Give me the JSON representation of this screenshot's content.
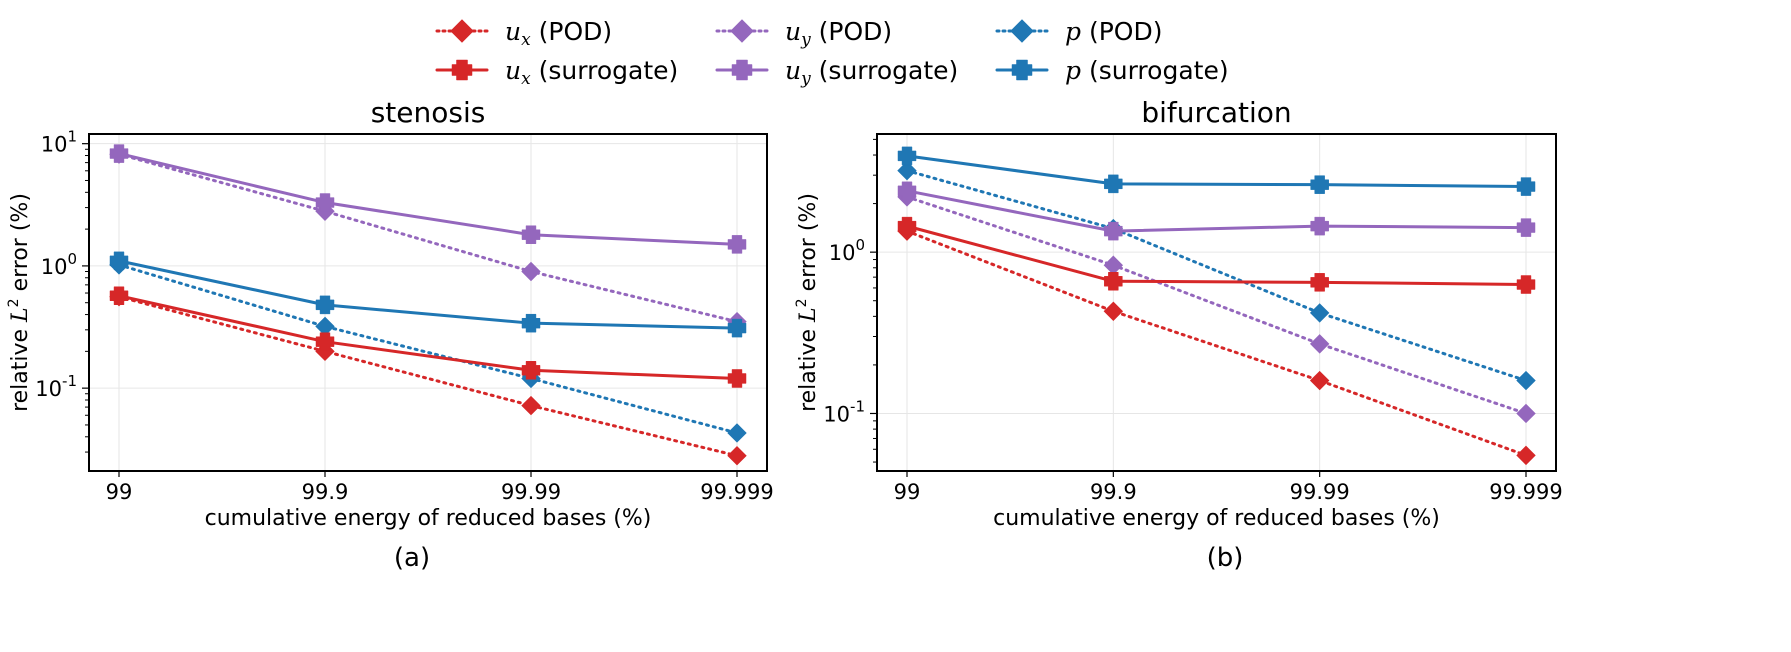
{
  "legend": {
    "placement": "top-center",
    "entries": [
      {
        "var": "u",
        "sub": "x",
        "suffix": " (POD)",
        "series": "ux",
        "style": "dotted"
      },
      {
        "var": "u",
        "sub": "y",
        "suffix": " (POD)",
        "series": "uy",
        "style": "dotted"
      },
      {
        "var": "p",
        "sub": "",
        "suffix": " (POD)",
        "series": "p",
        "style": "dotted"
      },
      {
        "var": "u",
        "sub": "x",
        "suffix": " (surrogate)",
        "series": "ux",
        "style": "solid"
      },
      {
        "var": "u",
        "sub": "y",
        "suffix": " (surrogate)",
        "series": "uy",
        "style": "solid"
      },
      {
        "var": "p",
        "sub": "",
        "suffix": " (surrogate)",
        "series": "p",
        "style": "solid"
      }
    ]
  },
  "colors": {
    "ux": "#d62728",
    "uy": "#9467bd",
    "p": "#1f77b4"
  },
  "chart_data": [
    {
      "type": "line",
      "panel": "(a)",
      "title": "stenosis",
      "xlabel": "cumulative energy of reduced bases (%)",
      "ylabel_prefix": "relative ",
      "ylabel_math": "L",
      "ylabel_sup": "2",
      "ylabel_suffix": " error (%)",
      "yscale": "log",
      "ylim": [
        0.021,
        12
      ],
      "categories": [
        "99",
        "99.9",
        "99.99",
        "99.999"
      ],
      "yticks": [
        {
          "value": 0.1,
          "base": "10",
          "exp": "-1"
        },
        {
          "value": 1,
          "base": "10",
          "exp": "0"
        },
        {
          "value": 10,
          "base": "10",
          "exp": "1"
        }
      ],
      "grid": true,
      "series": [
        {
          "name": "u_x (POD)",
          "key": "ux",
          "style": "dotted",
          "marker": "diamond",
          "values": [
            0.56,
            0.2,
            0.072,
            0.028
          ]
        },
        {
          "name": "u_y (POD)",
          "key": "uy",
          "style": "dotted",
          "marker": "diamond",
          "values": [
            8.2,
            2.8,
            0.9,
            0.35
          ]
        },
        {
          "name": "p (POD)",
          "key": "p",
          "style": "dotted",
          "marker": "diamond",
          "values": [
            1.02,
            0.32,
            0.12,
            0.043
          ]
        },
        {
          "name": "u_x (surrogate)",
          "key": "ux",
          "style": "solid",
          "marker": "plus",
          "values": [
            0.57,
            0.24,
            0.14,
            0.12
          ]
        },
        {
          "name": "u_y (surrogate)",
          "key": "uy",
          "style": "solid",
          "marker": "plus",
          "values": [
            8.3,
            3.3,
            1.8,
            1.5
          ]
        },
        {
          "name": "p (surrogate)",
          "key": "p",
          "style": "solid",
          "marker": "plus",
          "values": [
            1.1,
            0.48,
            0.34,
            0.31
          ]
        }
      ]
    },
    {
      "type": "line",
      "panel": "(b)",
      "title": "bifurcation",
      "xlabel": "cumulative energy of reduced bases (%)",
      "ylabel_prefix": "relative ",
      "ylabel_math": "L",
      "ylabel_sup": "2",
      "ylabel_suffix": " error (%)",
      "yscale": "log",
      "ylim": [
        0.044,
        5.4
      ],
      "categories": [
        "99",
        "99.9",
        "99.99",
        "99.999"
      ],
      "yticks": [
        {
          "value": 0.1,
          "base": "10",
          "exp": "-1"
        },
        {
          "value": 1,
          "base": "10",
          "exp": "0"
        }
      ],
      "grid": true,
      "series": [
        {
          "name": "u_x (POD)",
          "key": "ux",
          "style": "dotted",
          "marker": "diamond",
          "values": [
            1.35,
            0.43,
            0.16,
            0.055
          ]
        },
        {
          "name": "u_y (POD)",
          "key": "uy",
          "style": "dotted",
          "marker": "diamond",
          "values": [
            2.2,
            0.83,
            0.27,
            0.1
          ]
        },
        {
          "name": "p (POD)",
          "key": "p",
          "style": "dotted",
          "marker": "diamond",
          "values": [
            3.2,
            1.4,
            0.42,
            0.16
          ]
        },
        {
          "name": "u_x (surrogate)",
          "key": "ux",
          "style": "solid",
          "marker": "plus",
          "values": [
            1.45,
            0.66,
            0.65,
            0.63
          ]
        },
        {
          "name": "u_y (surrogate)",
          "key": "uy",
          "style": "solid",
          "marker": "plus",
          "values": [
            2.4,
            1.35,
            1.45,
            1.42
          ]
        },
        {
          "name": "p (surrogate)",
          "key": "p",
          "style": "solid",
          "marker": "plus",
          "values": [
            3.95,
            2.65,
            2.62,
            2.55
          ]
        }
      ]
    }
  ]
}
